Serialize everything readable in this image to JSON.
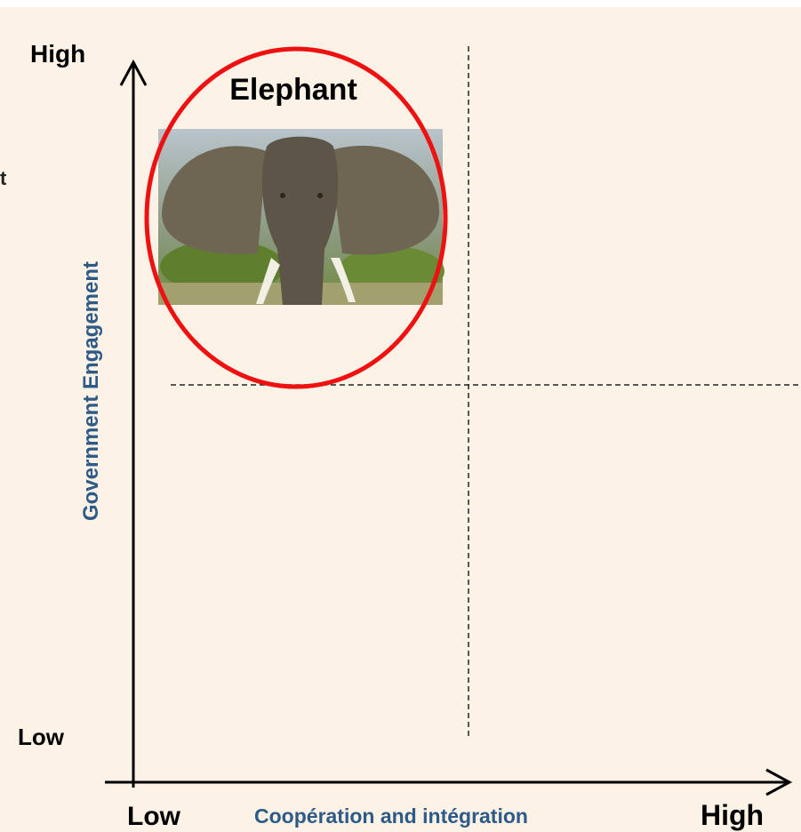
{
  "fragment": "t",
  "y_axis": {
    "high": "High",
    "low": "Low",
    "label": "Government Engagement"
  },
  "x_axis": {
    "low": "Low",
    "label": "Coopération and intégration",
    "high": "High"
  },
  "quadrant": {
    "label": "Elephant"
  }
}
